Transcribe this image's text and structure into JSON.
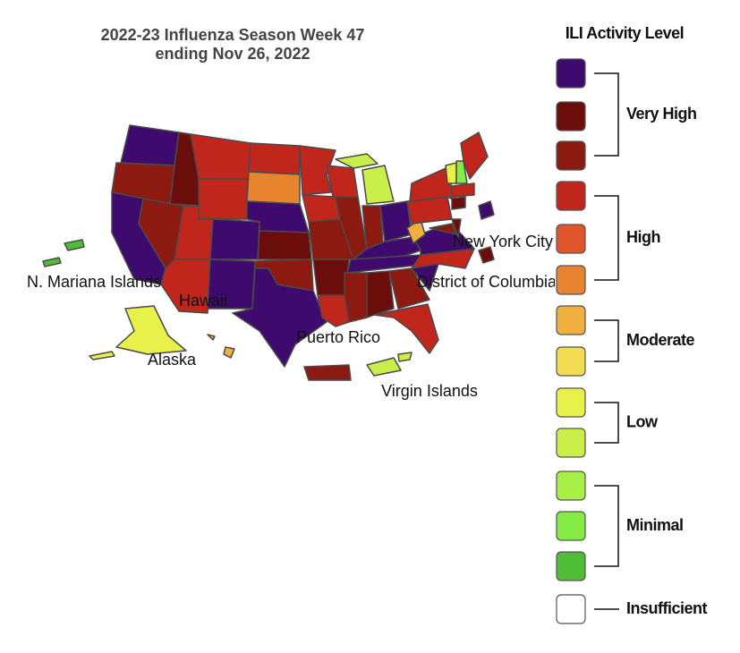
{
  "header": {
    "title_lines": [
      "2022-23 Influenza Season Week 47",
      "ending Nov 26, 2022"
    ]
  },
  "map": {
    "labels": [
      "N. Mariana Islands",
      "Hawaii",
      "Alaska",
      "Puerto Rico",
      "Virgin Islands",
      "New York City",
      "District of Columbia"
    ]
  },
  "legend": {
    "title": "ILI Activity Level",
    "colors": [
      "#3f0a6e",
      "#6b0d0b",
      "#8c1a10",
      "#c0261b",
      "#e0552a",
      "#e8832e",
      "#f0b040",
      "#f3dc50",
      "#e8f04a",
      "#cbef4a",
      "#a8ef48",
      "#84ec45",
      "#4fbd35",
      "#ffffff"
    ],
    "levels": [
      "Very High",
      "High",
      "Moderate",
      "Low",
      "Minimal",
      "Insufficient"
    ]
  }
}
